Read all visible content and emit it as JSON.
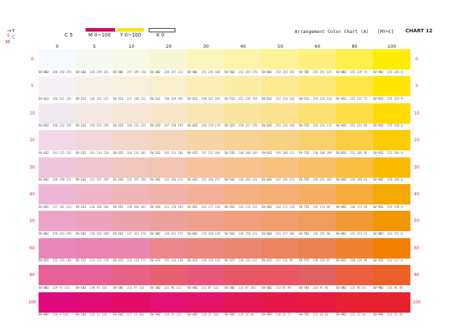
{
  "legend": {
    "axis_y": "Y",
    "axis_c": "C",
    "axis_m": "M",
    "cyan_label": "C  5",
    "magenta_label": "M  0~100",
    "yellow_label": "Y  0~100",
    "black_label": "K  0",
    "magenta_color": "#d6005f",
    "yellow_color": "#f7e600",
    "black_swatch_color": "#ffffff"
  },
  "title": "Arrangement Color Chart  (A)",
  "badge": "[MY+C]",
  "chart_no": "CHART 12",
  "columns": [
    "0",
    "5",
    "10",
    "20",
    "30",
    "40",
    "50",
    "60",
    "80",
    "100"
  ],
  "rows": [
    {
      "label": "0",
      "cells": [
        {
          "code": "SV-002",
          "rgb": "246 250 254",
          "color": "#f6fafe"
        },
        {
          "code": "SV-102",
          "rgb": "246 249 241",
          "color": "#f6f9f1"
        },
        {
          "code": "SV-202",
          "rgb": "247 249 230",
          "color": "#f7f9e6"
        },
        {
          "code": "SV-302",
          "rgb": "248 247 213",
          "color": "#f8f7d5"
        },
        {
          "code": "SV-402",
          "rgb": "251 246 188",
          "color": "#fbf6bc"
        },
        {
          "code": "SV-502",
          "rgb": "252 244 170",
          "color": "#fcf4aa"
        },
        {
          "code": "SV-602",
          "rgb": "254 243 150",
          "color": "#fef396"
        },
        {
          "code": "SV-702",
          "rgb": "255 241 125",
          "color": "#fff17d"
        },
        {
          "code": "SV-802",
          "rgb": "255 239 74",
          "color": "#ffef4a"
        },
        {
          "code": "SV-902",
          "rgb": "255 236 0",
          "color": "#ffec00"
        }
      ]
    },
    {
      "label": "5",
      "cells": [
        {
          "code": "SV-012",
          "rgb": "246 241 245",
          "color": "#f6f1f5"
        },
        {
          "code": "SV-112",
          "rgb": "246 241 232",
          "color": "#f6f1e8"
        },
        {
          "code": "SV-212",
          "rgb": "247 240 221",
          "color": "#f7f0dd"
        },
        {
          "code": "SV-312",
          "rgb": "248 239 205",
          "color": "#f8efcd"
        },
        {
          "code": "SV-412",
          "rgb": "250 237 182",
          "color": "#faedb6"
        },
        {
          "code": "SV-512",
          "rgb": "251 236 164",
          "color": "#fbeca4"
        },
        {
          "code": "SV-612",
          "rgb": "252 234 146",
          "color": "#fcea92"
        },
        {
          "code": "SV-712",
          "rgb": "254 233 120",
          "color": "#fee978"
        },
        {
          "code": "SV-812",
          "rgb": "255 231 72",
          "color": "#ffe748"
        },
        {
          "code": "SV-912",
          "rgb": "255 229 0",
          "color": "#ffe500"
        }
      ]
    },
    {
      "label": "10",
      "cells": [
        {
          "code": "SV-022",
          "rgb": "240 232 241",
          "color": "#f0e8f1"
        },
        {
          "code": "SV-122",
          "rgb": "245 232 226",
          "color": "#f5e8e2"
        },
        {
          "code": "SV-222",
          "rgb": "246 231 213",
          "color": "#f6e7d5"
        },
        {
          "code": "SV-322",
          "rgb": "247 230 199",
          "color": "#f7e6c7"
        },
        {
          "code": "SV-422",
          "rgb": "249 229 176",
          "color": "#f9e5b0"
        },
        {
          "code": "SV-522",
          "rgb": "250 227 158",
          "color": "#fae39e"
        },
        {
          "code": "SV-622",
          "rgb": "252 226 140",
          "color": "#fce28c"
        },
        {
          "code": "SV-722",
          "rgb": "253 224 115",
          "color": "#fde073"
        },
        {
          "code": "SV-822",
          "rgb": "255 222 69",
          "color": "#ffde45"
        },
        {
          "code": "SV-922",
          "rgb": "255 220 0",
          "color": "#ffdc00"
        }
      ]
    },
    {
      "label": "20",
      "cells": [
        {
          "code": "SV-032",
          "rgb": "241 215 232",
          "color": "#f1d7e8"
        },
        {
          "code": "SV-132",
          "rgb": "241 214 220",
          "color": "#f1d6dc"
        },
        {
          "code": "SV-232",
          "rgb": "244 214 201",
          "color": "#f4d6c9"
        },
        {
          "code": "SV-332",
          "rgb": "245 213 186",
          "color": "#f5d5ba"
        },
        {
          "code": "SV-432",
          "rgb": "247 212 164",
          "color": "#f7d4a4"
        },
        {
          "code": "SV-532",
          "rgb": "248 209 149",
          "color": "#f8d195"
        },
        {
          "code": "SV-632",
          "rgb": "249 209 132",
          "color": "#f9d184"
        },
        {
          "code": "SV-732",
          "rgb": "250 208 109",
          "color": "#fad06d"
        },
        {
          "code": "SV-832",
          "rgb": "252 205 68",
          "color": "#fccd44"
        },
        {
          "code": "SV-932",
          "rgb": "252 203 0",
          "color": "#fccb00"
        }
      ]
    },
    {
      "label": "30",
      "cells": [
        {
          "code": "SV-042",
          "rgb": "240 198 221",
          "color": "#f0c6dd"
        },
        {
          "code": "SV-142",
          "rgb": "241 197 209",
          "color": "#f1c5d1"
        },
        {
          "code": "SV-242",
          "rgb": "242 197 190",
          "color": "#f2c5be"
        },
        {
          "code": "SV-342",
          "rgb": "243 196 176",
          "color": "#f3c4b0"
        },
        {
          "code": "SV-442",
          "rgb": "245 194 157",
          "color": "#f5c29d"
        },
        {
          "code": "SV-542",
          "rgb": "246 193 141",
          "color": "#f6c18d"
        },
        {
          "code": "SV-642",
          "rgb": "247 192 124",
          "color": "#f7c07c"
        },
        {
          "code": "SV-742",
          "rgb": "249 191 102",
          "color": "#f9bf66"
        },
        {
          "code": "SV-842",
          "rgb": "249 189 64",
          "color": "#f9bd40"
        },
        {
          "code": "SV-942",
          "rgb": "250 186 0",
          "color": "#faba00"
        }
      ]
    },
    {
      "label": "40",
      "cells": [
        {
          "code": "SV-052",
          "rgb": "237 181 213",
          "color": "#edb5d5"
        },
        {
          "code": "SV-152",
          "rgb": "238 180 200",
          "color": "#eeb4c8"
        },
        {
          "code": "SV-252",
          "rgb": "239 180 182",
          "color": "#efb4b6"
        },
        {
          "code": "SV-352",
          "rgb": "241 178 169",
          "color": "#f1b2a9"
        },
        {
          "code": "SV-452",
          "rgb": "242 177 150",
          "color": "#f2b196"
        },
        {
          "code": "SV-552",
          "rgb": "243 176 133",
          "color": "#f3b085"
        },
        {
          "code": "SV-652",
          "rgb": "244 175 118",
          "color": "#f4af76"
        },
        {
          "code": "SV-752",
          "rgb": "245 174 98",
          "color": "#f5ae62"
        },
        {
          "code": "SV-852",
          "rgb": "246 171 59",
          "color": "#f6ab3b"
        },
        {
          "code": "SV-952",
          "rgb": "245 170 0",
          "color": "#f5aa00"
        }
      ]
    },
    {
      "label": "50",
      "cells": [
        {
          "code": "SV-062",
          "rgb": "236 163 199",
          "color": "#eca3c7"
        },
        {
          "code": "SV-162",
          "rgb": "236 162 188",
          "color": "#eca2bc"
        },
        {
          "code": "SV-262",
          "rgb": "237 161 170",
          "color": "#eda1aa"
        },
        {
          "code": "SV-362",
          "rgb": "238 161 155",
          "color": "#eea19b"
        },
        {
          "code": "SV-462",
          "rgb": "239 160 139",
          "color": "#efa08b"
        },
        {
          "code": "SV-562",
          "rgb": "240 158 123",
          "color": "#f09e7b"
        },
        {
          "code": "SV-662",
          "rgb": "241 157 108",
          "color": "#f19d6c"
        },
        {
          "code": "SV-762",
          "rgb": "242 155 90",
          "color": "#f29b5a"
        },
        {
          "code": "SV-862",
          "rgb": "242 153 51",
          "color": "#f29933"
        },
        {
          "code": "SV-962",
          "rgb": "242 151 0",
          "color": "#f29700"
        }
      ]
    },
    {
      "label": "60",
      "cells": [
        {
          "code": "SV-072",
          "rgb": "232 134 184",
          "color": "#e886b8"
        },
        {
          "code": "SV-172",
          "rgb": "233 132 178",
          "color": "#e984b2"
        },
        {
          "code": "SV-272",
          "rgb": "233 134 175",
          "color": "#e986af"
        },
        {
          "code": "SV-372",
          "rgb": "235 134 138",
          "color": "#eb868a"
        },
        {
          "code": "SV-472",
          "rgb": "236 134 126",
          "color": "#ec867e"
        },
        {
          "code": "SV-572",
          "rgb": "236 133 112",
          "color": "#ec8570"
        },
        {
          "code": "SV-672",
          "rgb": "237 131 96",
          "color": "#ed8360"
        },
        {
          "code": "SV-772",
          "rgb": "238 129 81",
          "color": "#ee8151"
        },
        {
          "code": "SV-872",
          "rgb": "240 129 46",
          "color": "#f0812e"
        },
        {
          "code": "SV-972",
          "rgb": "242 127 0",
          "color": "#f27f00"
        }
      ]
    },
    {
      "label": "80",
      "cells": [
        {
          "code": "SV-082",
          "rgb": "229 97 151",
          "color": "#e56197"
        },
        {
          "code": "SV-182",
          "rgb": "230 97 154",
          "color": "#e6619a"
        },
        {
          "code": "SV-282",
          "rgb": "231 97 132",
          "color": "#e76184"
        },
        {
          "code": "SV-382",
          "rgb": "231 96 111",
          "color": "#e7606f"
        },
        {
          "code": "SV-482",
          "rgb": "231 87 122",
          "color": "#e7577a"
        },
        {
          "code": "SV-582",
          "rgb": "232 87 101",
          "color": "#e85765"
        },
        {
          "code": "SV-682",
          "rgb": "233 87 99",
          "color": "#e95763"
        },
        {
          "code": "SV-782",
          "rgb": "224 97 96",
          "color": "#e06160"
        },
        {
          "code": "SV-882",
          "rgb": "235 96 64",
          "color": "#eb6040"
        },
        {
          "code": "SV-982",
          "rgb": "235 96 40",
          "color": "#eb6028"
        }
      ]
    },
    {
      "label": "100",
      "cells": [
        {
          "code": "SV-092",
          "rgb": "226 9 126",
          "color": "#e2097e"
        },
        {
          "code": "SV-192",
          "rgb": "226 12 116",
          "color": "#e20c74"
        },
        {
          "code": "SV-292",
          "rgb": "227 13 101",
          "color": "#e30d65"
        },
        {
          "code": "SV-392",
          "rgb": "228 19 115",
          "color": "#e41373"
        },
        {
          "code": "SV-492",
          "rgb": "228 21 104",
          "color": "#e41568"
        },
        {
          "code": "SV-592",
          "rgb": "229 24 86",
          "color": "#e51856"
        },
        {
          "code": "SV-692",
          "rgb": "230 24 71",
          "color": "#e61847"
        },
        {
          "code": "SV-792",
          "rgb": "231 26 64",
          "color": "#e71a40"
        },
        {
          "code": "SV-892",
          "rgb": "233 32 50",
          "color": "#e92032"
        },
        {
          "code": "SV-992",
          "rgb": "231 33 45",
          "color": "#e7212d"
        }
      ]
    }
  ]
}
